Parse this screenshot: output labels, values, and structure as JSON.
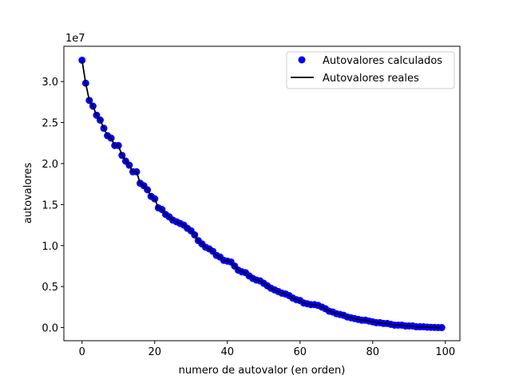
{
  "chart_data": {
    "type": "line",
    "xlabel": "numero de autovalor (en orden)",
    "ylabel": "autovalores",
    "y_offset_label": "1e7",
    "xlim": [
      -5,
      104
    ],
    "ylim": [
      -1600000,
      34300000
    ],
    "xticks": [
      0,
      20,
      40,
      60,
      80,
      100
    ],
    "yticks": [
      0,
      5000000,
      10000000,
      15000000,
      20000000,
      25000000,
      30000000
    ],
    "ytick_labels": [
      "0.0",
      "0.5",
      "1.0",
      "1.5",
      "2.0",
      "2.5",
      "3.0"
    ],
    "legend_position": "upper right",
    "grid": false,
    "series": [
      {
        "name": "Autovalores calculados",
        "kind": "scatter",
        "color": "#0000ff"
      },
      {
        "name": "Autovalores reales",
        "kind": "line",
        "color": "#000000"
      }
    ],
    "x": [
      0,
      1,
      2,
      3,
      4,
      5,
      6,
      7,
      8,
      9,
      10,
      11,
      12,
      13,
      14,
      15,
      16,
      17,
      18,
      19,
      20,
      21,
      22,
      23,
      24,
      25,
      26,
      27,
      28,
      29,
      30,
      31,
      32,
      33,
      34,
      35,
      36,
      37,
      38,
      39,
      40,
      41,
      42,
      43,
      44,
      45,
      46,
      47,
      48,
      49,
      50,
      51,
      52,
      53,
      54,
      55,
      56,
      57,
      58,
      59,
      60,
      61,
      62,
      63,
      64,
      65,
      66,
      67,
      68,
      69,
      70,
      71,
      72,
      73,
      74,
      75,
      76,
      77,
      78,
      79,
      80,
      81,
      82,
      83,
      84,
      85,
      86,
      87,
      88,
      89,
      90,
      91,
      92,
      93,
      94,
      95,
      96,
      97,
      98,
      99
    ],
    "values": [
      32600000,
      29800000,
      27700000,
      27000000,
      25900000,
      25300000,
      24300000,
      23400000,
      23100000,
      22200000,
      22200000,
      21000000,
      20300000,
      19800000,
      19000000,
      19000000,
      17600000,
      17300000,
      16800000,
      16000000,
      15700000,
      14600000,
      14400000,
      13800000,
      13500000,
      13100000,
      12900000,
      12700000,
      12500000,
      12100000,
      11800000,
      11300000,
      10600000,
      10200000,
      9800000,
      9600000,
      9300000,
      8800000,
      8600000,
      8200000,
      8100000,
      8000000,
      7500000,
      7000000,
      6800000,
      6700000,
      6300000,
      6000000,
      5800000,
      5700000,
      5400000,
      5100000,
      4800000,
      4600000,
      4400000,
      4200000,
      4100000,
      3900000,
      3600000,
      3400000,
      3300000,
      3000000,
      2900000,
      2800000,
      2800000,
      2700000,
      2500000,
      2300000,
      2000000,
      1900000,
      1700000,
      1600000,
      1500000,
      1300000,
      1200000,
      1100000,
      1000000,
      900000,
      900000,
      800000,
      700000,
      600000,
      600000,
      500000,
      500000,
      400000,
      300000,
      300000,
      300000,
      200000,
      200000,
      200000,
      100000,
      100000,
      100000,
      50000,
      30000,
      20000,
      10000,
      0
    ]
  }
}
